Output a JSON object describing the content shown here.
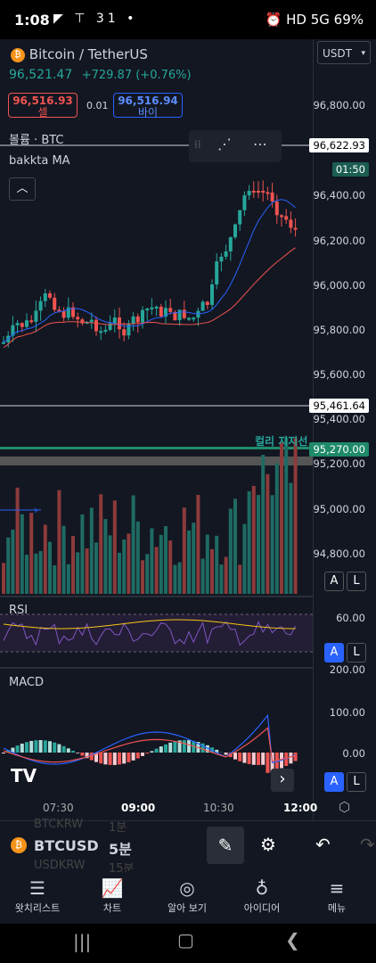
{
  "status": {
    "time": "1:08",
    "left_icons": "◤ ⊤ 31 •",
    "right_icons": "⏰ HD 5G 69%"
  },
  "header": {
    "symbol": "Bitcoin / TetherUS",
    "price": "96,521.47",
    "change": "+729.87 (+0.76%)",
    "currency": "USDT",
    "sell_price": "96,516.93",
    "sell_label": "셀",
    "spread": "0.01",
    "buy_price": "96,516.94",
    "buy_label": "바이"
  },
  "indicators": {
    "volume": "볼륨 · BTC",
    "ma": "bakkta MA",
    "rsi": "RSI",
    "macd": "MACD"
  },
  "price_axis": [
    "96,800.00",
    "96,400.00",
    "96,200.00",
    "96,000.00",
    "95,800.00",
    "95,600.00",
    "95,400.00",
    "95,200.00",
    "95,000.00",
    "94,800.00"
  ],
  "current_price_label": "96,622.93",
  "countdown": "01:50",
  "hline_label": "95,461.64",
  "support_label": "컬리 지지선",
  "support_price": "95,270.00",
  "rsi_axis": "60.00",
  "macd_axis": [
    "200.00",
    "100.00",
    "0.00"
  ],
  "time_axis": [
    "07:30",
    "09:00",
    "10:30",
    "12:00"
  ],
  "toolbar": {
    "symbol": "BTCUSD",
    "interval": "5분",
    "bg_symbols": [
      "BTCKRW",
      "USDKRW"
    ],
    "bg_intervals": [
      "1분",
      "15분"
    ]
  },
  "nav": [
    {
      "icon": "watchlist-icon",
      "label": "왓치리스트"
    },
    {
      "icon": "chart-icon",
      "label": "차트"
    },
    {
      "icon": "compass-icon",
      "label": "알아 보기"
    },
    {
      "icon": "bulb-icon",
      "label": "아이디어"
    },
    {
      "icon": "menu-icon",
      "label": "메뉴"
    }
  ],
  "btn": {
    "a": "A",
    "l": "L",
    "expand": "›",
    "collapse": "︿"
  },
  "colors": {
    "up": "#26a69a",
    "down": "#ef5350",
    "bg": "#131722",
    "accent": "#2962ff"
  }
}
